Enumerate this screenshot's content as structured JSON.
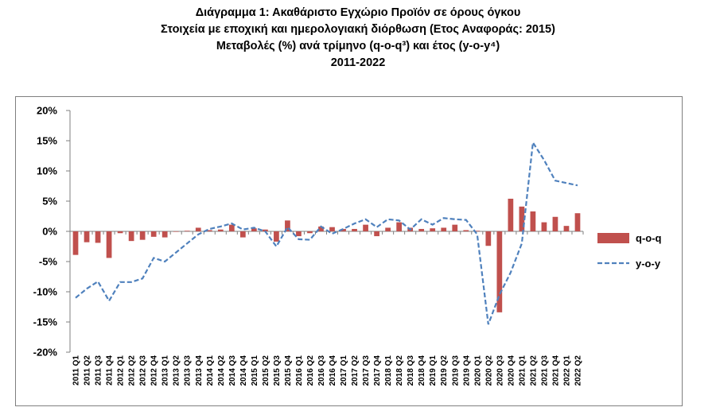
{
  "titles": {
    "line1": "Διάγραμμα 1: Ακαθάριστο Εγχώριο Προϊόν σε όρους όγκου",
    "line2": "Στοιχεία με εποχική και ημερολογιακή διόρθωση (Ετος Αναφοράς: 2015)",
    "line3": "Μεταβολές (%) ανά τρίμηνο (q-o-q³) και έτος (y-o-y⁴)",
    "line4": "2011-2022"
  },
  "colors": {
    "bar": "#c0504d",
    "line": "#4f81bd",
    "axis": "#7f7f7f"
  },
  "chart_data": {
    "type": "bar",
    "y_tick_labels": [
      "20%",
      "15%",
      "10%",
      "5%",
      "0%",
      "-5%",
      "-10%",
      "-15%",
      "-20%"
    ],
    "ylim": [
      -20,
      20
    ],
    "grid": false,
    "legend_position": "right",
    "categories": [
      "2011 Q1",
      "2011 Q2",
      "2011 Q3",
      "2011 Q4",
      "2012 Q1",
      "2012 Q2",
      "2012 Q3",
      "2012 Q4",
      "2013 Q1",
      "2013 Q2",
      "2013 Q3",
      "2013 Q4",
      "2014 Q1",
      "2014 Q2",
      "2014 Q3",
      "2014 Q4",
      "2015 Q1",
      "2015 Q2",
      "2015 Q3",
      "2015 Q4",
      "2016 Q1",
      "2016 Q2",
      "2016 Q3",
      "2016 Q4",
      "2017 Q1",
      "2017 Q2",
      "2017 Q3",
      "2017 Q4",
      "2018 Q1",
      "2018 Q2",
      "2018 Q3",
      "2018 Q4",
      "2019 Q1",
      "2019 Q2",
      "2019 Q3",
      "2019 Q4",
      "2020 Q1",
      "2020 Q2",
      "2020 Q3",
      "2020 Q4",
      "2021 Q1",
      "2021 Q2",
      "2021 Q3",
      "2021 Q4",
      "2022 Q1",
      "2022 Q2"
    ],
    "series": [
      {
        "name": "q-o-q",
        "kind": "bar",
        "values": [
          -3.9,
          -1.8,
          -1.9,
          -4.4,
          -0.3,
          -1.6,
          -1.4,
          -0.9,
          -1.0,
          0.0,
          0.1,
          0.6,
          0.2,
          0.3,
          1.1,
          -1.0,
          0.5,
          0.3,
          -1.7,
          1.8,
          -0.8,
          -0.3,
          0.8,
          0.7,
          0.4,
          0.4,
          1.1,
          -0.8,
          0.6,
          1.5,
          0.6,
          0.4,
          0.5,
          0.6,
          1.1,
          0.2,
          0.1,
          -2.4,
          -13.4,
          5.4,
          4.1,
          3.3,
          1.5,
          2.4,
          0.9,
          3.0
        ]
      },
      {
        "name": "y-o-y",
        "kind": "line",
        "values": [
          -11.0,
          -9.5,
          -8.3,
          -11.5,
          -8.4,
          -8.4,
          -7.8,
          -4.4,
          -5.0,
          -3.5,
          -2.0,
          -0.5,
          0.4,
          0.8,
          1.3,
          0.3,
          0.6,
          0.0,
          -2.5,
          0.7,
          -1.3,
          -1.4,
          0.8,
          -0.4,
          0.4,
          1.3,
          2.0,
          0.7,
          2.0,
          1.8,
          0.3,
          2.0,
          1.1,
          2.2,
          2.0,
          1.9,
          -0.5,
          -15.4,
          -10.5,
          -6.8,
          -2.0,
          14.7,
          11.8,
          8.4,
          8.0,
          7.6
        ]
      }
    ]
  }
}
